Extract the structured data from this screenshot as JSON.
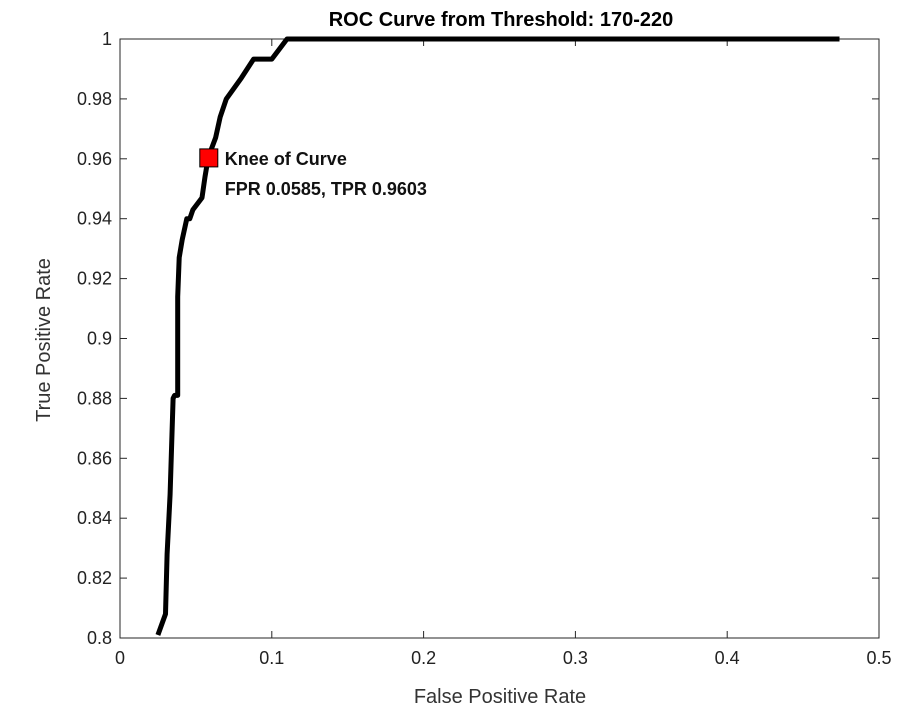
{
  "chart_data": {
    "type": "line",
    "title": "ROC Curve from Threshold: 170-220",
    "xlabel": "False Positive Rate",
    "ylabel": "True Positive Rate",
    "xlim": [
      0,
      0.5
    ],
    "ylim": [
      0.8,
      1
    ],
    "xticks": [
      "0",
      "0.1",
      "0.2",
      "0.3",
      "0.4",
      "0.5"
    ],
    "yticks": [
      "0.8",
      "0.82",
      "0.84",
      "0.86",
      "0.88",
      "0.9",
      "0.92",
      "0.94",
      "0.96",
      "0.98",
      "1"
    ],
    "grid": false,
    "series": [
      {
        "color": "#000000",
        "x": [
          0.025,
          0.03,
          0.031,
          0.033,
          0.035,
          0.036,
          0.038,
          0.038,
          0.039,
          0.041,
          0.044,
          0.046,
          0.048,
          0.054,
          0.056,
          0.058,
          0.06,
          0.063,
          0.066,
          0.07,
          0.08,
          0.088,
          0.1,
          0.11,
          0.474
        ],
        "y": [
          0.801,
          0.808,
          0.828,
          0.848,
          0.88,
          0.881,
          0.881,
          0.914,
          0.927,
          0.933,
          0.94,
          0.94,
          0.943,
          0.947,
          0.954,
          0.96,
          0.963,
          0.967,
          0.974,
          0.98,
          0.987,
          0.9933,
          0.9933,
          1.0,
          1.0
        ]
      }
    ],
    "annotations": [
      {
        "marker": "square",
        "marker_color": "#ff0000",
        "x": 0.0585,
        "y": 0.9603,
        "lines": [
          "Knee of Curve",
          "FPR 0.0585, TPR 0.9603"
        ]
      }
    ]
  }
}
